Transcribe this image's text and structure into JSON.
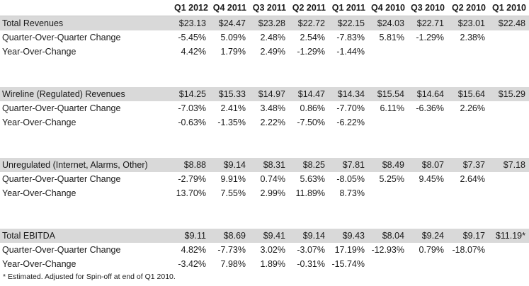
{
  "columns": [
    "Q1 2012",
    "Q4 2011",
    "Q3 2011",
    "Q2 2011",
    "Q1 2011",
    "Q4 2010",
    "Q3 2010",
    "Q2 2010",
    "Q1 2010"
  ],
  "sections": [
    {
      "title": "Total Revenues",
      "values": [
        "$23.13",
        "$24.47",
        "$23.28",
        "$22.72",
        "$22.15",
        "$24.03",
        "$22.71",
        "$23.01",
        "$22.48"
      ],
      "qoq_label": "Quarter-Over-Quarter Change",
      "qoq": [
        "-5.45%",
        "5.09%",
        "2.48%",
        "2.54%",
        "-7.83%",
        "5.81%",
        "-1.29%",
        "2.38%",
        ""
      ],
      "yoy_label": "Year-Over-Change",
      "yoy": [
        "4.42%",
        "1.79%",
        "2.49%",
        "-1.29%",
        "-1.44%",
        "",
        "",
        "",
        ""
      ]
    },
    {
      "title": "Wireline (Regulated) Revenues",
      "values": [
        "$14.25",
        "$15.33",
        "$14.97",
        "$14.47",
        "$14.34",
        "$15.54",
        "$14.64",
        "$15.64",
        "$15.29"
      ],
      "qoq_label": "Quarter-Over-Quarter Change",
      "qoq": [
        "-7.03%",
        "2.41%",
        "3.48%",
        "0.86%",
        "-7.70%",
        "6.11%",
        "-6.36%",
        "2.26%",
        ""
      ],
      "yoy_label": "Year-Over-Change",
      "yoy": [
        "-0.63%",
        "-1.35%",
        "2.22%",
        "-7.50%",
        "-6.22%",
        "",
        "",
        "",
        ""
      ]
    },
    {
      "title": "Unregulated (Internet, Alarms, Other)",
      "values": [
        "$8.88",
        "$9.14",
        "$8.31",
        "$8.25",
        "$7.81",
        "$8.49",
        "$8.07",
        "$7.37",
        "$7.18"
      ],
      "qoq_label": "Quarter-Over-Quarter Change",
      "qoq": [
        "-2.79%",
        "9.91%",
        "0.74%",
        "5.63%",
        "-8.05%",
        "5.25%",
        "9.45%",
        "2.64%",
        ""
      ],
      "yoy_label": "Year-Over-Change",
      "yoy": [
        "13.70%",
        "7.55%",
        "2.99%",
        "11.89%",
        "8.73%",
        "",
        "",
        "",
        ""
      ]
    },
    {
      "title": "Total EBITDA",
      "values": [
        "$9.11",
        "$8.69",
        "$9.41",
        "$9.14",
        "$9.43",
        "$8.04",
        "$9.24",
        "$9.17",
        "$11.19*"
      ],
      "qoq_label": "Quarter-Over-Quarter Change",
      "qoq": [
        "4.82%",
        "-7.73%",
        "3.02%",
        "-3.07%",
        "17.19%",
        "-12.93%",
        "0.79%",
        "-18.07%",
        ""
      ],
      "yoy_label": "Year-Over-Change",
      "yoy": [
        "-3.42%",
        "7.98%",
        "1.89%",
        "-0.31%",
        "-15.74%",
        "",
        "",
        "",
        ""
      ]
    }
  ],
  "footnote": "* Estimated. Adjusted for Spin-off at end of Q1 2010."
}
